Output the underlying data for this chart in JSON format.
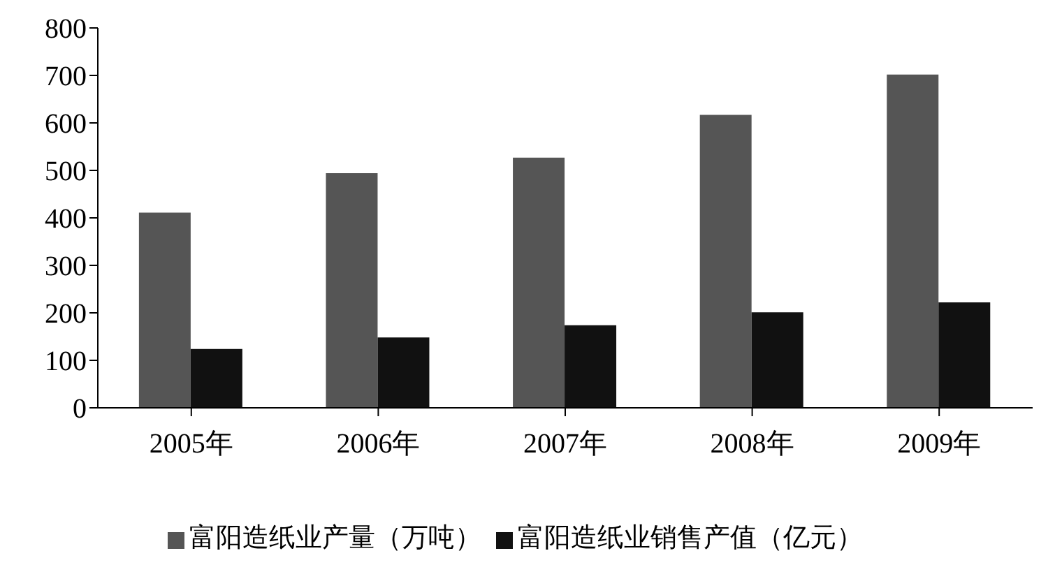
{
  "chart_data": {
    "type": "bar",
    "categories": [
      "2005年",
      "2006年",
      "2007年",
      "2008年",
      "2009年"
    ],
    "series": [
      {
        "name": "富阳造纸业产量（万吨）",
        "color": "#555555",
        "values": [
          411,
          494,
          527,
          617,
          702
        ]
      },
      {
        "name": "富阳造纸业销售产值（亿元）",
        "color": "#111111",
        "values": [
          124,
          148,
          174,
          201,
          222
        ]
      }
    ],
    "ylim": [
      0,
      800
    ],
    "yticks": [
      0,
      100,
      200,
      300,
      400,
      500,
      600,
      700,
      800
    ],
    "grid": false,
    "legend": "bottom"
  }
}
